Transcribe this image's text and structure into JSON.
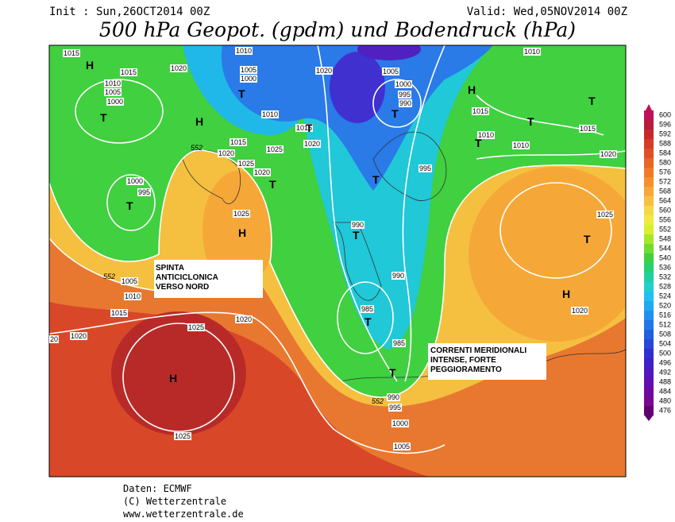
{
  "header": {
    "init": "Init : Sun,26OCT2014 00Z",
    "valid": "Valid: Wed,05NOV2014 00Z",
    "title": "500 hPa Geopot. (gpdm) und Bodendruck (hPa)"
  },
  "annotations": [
    {
      "lines": [
        "SPINTA",
        "ANTICICLONICA",
        "VERSO NORD"
      ]
    },
    {
      "lines": [
        "CORRENTI MERIDIONALI",
        "INTENSE, FORTE",
        "PEGGIORAMENTO"
      ]
    }
  ],
  "pressure_centers": [
    "H",
    "T",
    "T",
    "H",
    "T",
    "T",
    "H",
    "T",
    "T",
    "T",
    "T",
    "T",
    "T",
    "H",
    "T",
    "T",
    "H",
    "T",
    "T",
    "H"
  ],
  "isobar_labels": [
    1015,
    1015,
    1010,
    1005,
    1000,
    1020,
    1010,
    1005,
    1000,
    1010,
    1020,
    1005,
    1000,
    995,
    990,
    1015,
    1010,
    1010,
    1015,
    1010,
    1020,
    1015,
    1020,
    1015,
    1025,
    1020,
    1025,
    1020,
    995,
    1000,
    995,
    1025,
    990,
    1025,
    990,
    1005,
    1010,
    1015,
    1020,
    20,
    1025,
    1020,
    985,
    985,
    1020,
    990,
    995,
    1000,
    1005,
    1025
  ],
  "contour_labels": [
    552,
    552,
    552
  ],
  "legend": {
    "levels": [
      600,
      596,
      592,
      588,
      584,
      580,
      576,
      572,
      568,
      564,
      560,
      556,
      552,
      548,
      544,
      540,
      536,
      532,
      528,
      524,
      520,
      516,
      512,
      508,
      504,
      500,
      496,
      492,
      488,
      484,
      480,
      476
    ],
    "colors": [
      "#c0105a",
      "#b41e3c",
      "#c8282a",
      "#d63c28",
      "#e05028",
      "#e86428",
      "#f07a28",
      "#f59030",
      "#f7a838",
      "#f8c040",
      "#f5d848",
      "#f0ea40",
      "#d8f030",
      "#a8e828",
      "#70dc30",
      "#40d040",
      "#28d070",
      "#20d0a0",
      "#20d0d0",
      "#20c0f0",
      "#20a8f0",
      "#2090f0",
      "#2078e8",
      "#2060e0",
      "#2848d8",
      "#3030d0",
      "#4020c8",
      "#5018c0",
      "#6010b0",
      "#7008a0",
      "#780890",
      "#600070"
    ]
  },
  "footer": [
    "Daten: ECMWF",
    "(C) Wetterzentrale",
    "www.wetterzentrale.de"
  ]
}
